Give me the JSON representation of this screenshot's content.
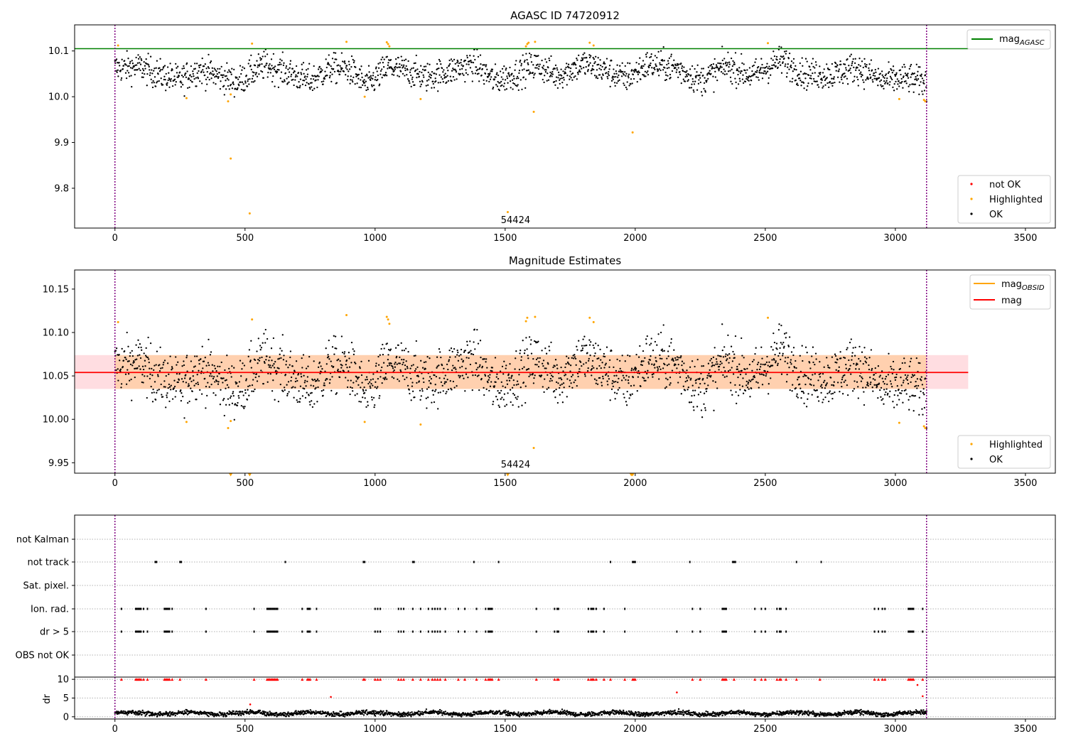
{
  "chart_data": [
    {
      "type": "scatter",
      "title": "AGASC ID 74720912",
      "xlim": [
        -155,
        3615
      ],
      "ylim": [
        9.713,
        10.157
      ],
      "xticks": [
        "0",
        "500",
        "1000",
        "1500",
        "2000",
        "2500",
        "3000",
        "3500"
      ],
      "yticks": [
        "9.8",
        "9.9",
        "10.0",
        "10.1"
      ],
      "reference_line": {
        "label": "mag_AGASC",
        "value": 10.105,
        "color": "#008000"
      },
      "vlines": [
        0,
        3120
      ],
      "annotation": {
        "text": "54424",
        "x": 1540,
        "y": 9.73
      },
      "series": [
        {
          "name": "not OK",
          "color": "#ff0000",
          "points": []
        },
        {
          "name": "Highlighted",
          "color": "#ffa500",
          "points": [
            [
              12,
              10.112
            ],
            [
              275,
              9.997
            ],
            [
              435,
              9.99
            ],
            [
              445,
              9.865
            ],
            [
              445,
              10.005
            ],
            [
              518,
              9.745
            ],
            [
              527,
              10.116
            ],
            [
              890,
              10.12
            ],
            [
              960,
              10.0
            ],
            [
              1045,
              10.119
            ],
            [
              1050,
              10.115
            ],
            [
              1055,
              10.11
            ],
            [
              1175,
              9.995
            ],
            [
              1510,
              9.748
            ],
            [
              1580,
              10.11
            ],
            [
              1585,
              10.115
            ],
            [
              1590,
              10.118
            ],
            [
              1610,
              9.967
            ],
            [
              1615,
              10.12
            ],
            [
              1825,
              10.118
            ],
            [
              1840,
              10.112
            ],
            [
              1990,
              9.922
            ],
            [
              2510,
              10.117
            ],
            [
              3015,
              9.995
            ],
            [
              3110,
              9.993
            ],
            [
              3115,
              9.99
            ]
          ]
        },
        {
          "name": "OK",
          "color": "#000000",
          "band_center": [
            [
              0,
              10.062
            ],
            [
              100,
              10.065
            ],
            [
              150,
              10.052
            ],
            [
              250,
              10.036
            ],
            [
              320,
              10.06
            ],
            [
              400,
              10.045
            ],
            [
              470,
              10.032
            ],
            [
              520,
              10.05
            ],
            [
              580,
              10.07
            ],
            [
              650,
              10.055
            ],
            [
              750,
              10.035
            ],
            [
              830,
              10.062
            ],
            [
              900,
              10.06
            ],
            [
              970,
              10.025
            ],
            [
              1050,
              10.065
            ],
            [
              1130,
              10.055
            ],
            [
              1200,
              10.043
            ],
            [
              1300,
              10.058
            ],
            [
              1380,
              10.072
            ],
            [
              1460,
              10.035
            ],
            [
              1550,
              10.052
            ],
            [
              1620,
              10.07
            ],
            [
              1700,
              10.046
            ],
            [
              1800,
              10.072
            ],
            [
              1900,
              10.055
            ],
            [
              1960,
              10.04
            ],
            [
              2050,
              10.07
            ],
            [
              2150,
              10.065
            ],
            [
              2250,
              10.035
            ],
            [
              2350,
              10.068
            ],
            [
              2450,
              10.045
            ],
            [
              2560,
              10.08
            ],
            [
              2650,
              10.05
            ],
            [
              2750,
              10.048
            ],
            [
              2850,
              10.065
            ],
            [
              2950,
              10.035
            ],
            [
              3050,
              10.04
            ],
            [
              3120,
              10.03
            ]
          ]
        }
      ],
      "legend_lines": {
        "items": [
          {
            "label": "mag",
            "sub": "AGASC",
            "color": "#008000"
          }
        ],
        "placement": "upper right"
      },
      "legend_points": {
        "items": [
          "not OK",
          "Highlighted",
          "OK"
        ],
        "placement": "lower right"
      }
    },
    {
      "type": "scatter",
      "title": "Magnitude Estimates",
      "xlim": [
        -155,
        3615
      ],
      "ylim": [
        9.938,
        10.172
      ],
      "xticks": [
        "0",
        "500",
        "1000",
        "1500",
        "2000",
        "2500",
        "3000",
        "3500"
      ],
      "yticks": [
        "9.95",
        "10.00",
        "10.05",
        "10.10",
        "10.15"
      ],
      "mag": {
        "value": 10.054,
        "color": "#ff0000",
        "band": [
          10.035,
          10.074
        ],
        "band_color": "#ffdde1"
      },
      "mag_obsid": {
        "color": "#ffa500"
      },
      "vlines": [
        0,
        3120
      ],
      "annotation": {
        "text": "54424",
        "x": 1540,
        "y": 9.948
      },
      "series": [
        {
          "name": "Highlighted",
          "color": "#ffa500",
          "points": [
            [
              12,
              10.112
            ],
            [
              275,
              9.997
            ],
            [
              435,
              9.99
            ],
            [
              445,
              9.998
            ],
            [
              527,
              10.115
            ],
            [
              890,
              10.12
            ],
            [
              960,
              9.997
            ],
            [
              1045,
              10.118
            ],
            [
              1050,
              10.115
            ],
            [
              1055,
              10.11
            ],
            [
              1175,
              9.994
            ],
            [
              1580,
              10.113
            ],
            [
              1585,
              10.117
            ],
            [
              1615,
              10.118
            ],
            [
              1610,
              9.967
            ],
            [
              1825,
              10.117
            ],
            [
              1840,
              10.112
            ],
            [
              2510,
              10.117
            ],
            [
              3015,
              9.996
            ],
            [
              3110,
              9.992
            ],
            [
              3115,
              9.99
            ]
          ]
        },
        {
          "name": "OK",
          "color": "#000000"
        }
      ],
      "clipped_markers": {
        "color": "#ffa500",
        "x": [
          445,
          518,
          1510,
          1985,
          1990
        ],
        "y": 9.94
      },
      "legend_lines": {
        "items": [
          {
            "label": "mag",
            "sub": "OBSID",
            "color": "#ffa500"
          },
          {
            "label": "mag",
            "sub": "",
            "color": "#ff0000"
          }
        ],
        "placement": "upper right"
      },
      "legend_points": {
        "items": [
          "Highlighted",
          "OK"
        ],
        "placement": "lower right"
      }
    },
    {
      "type": "scatter",
      "xlim": [
        -155,
        3615
      ],
      "flag_rows": [
        "not Kalman",
        "not track",
        "Sat. pixel.",
        "Ion. rad.",
        "dr > 5",
        "OBS not OK"
      ],
      "flags": {
        "not Kalman": [],
        "not track": [
          155,
          160,
          250,
          255,
          655,
          955,
          960,
          1145,
          1150,
          1380,
          1475,
          1905,
          1990,
          1995,
          2000,
          2210,
          2375,
          2380,
          2385,
          2620,
          2715
        ],
        "Sat. pixel.": [],
        "Ion. rad.": [
          25,
          80,
          85,
          90,
          95,
          100,
          110,
          125,
          190,
          195,
          200,
          205,
          210,
          220,
          350,
          535,
          585,
          590,
          595,
          600,
          605,
          610,
          615,
          620,
          625,
          720,
          740,
          745,
          750,
          775,
          1000,
          1010,
          1020,
          1090,
          1100,
          1110,
          1145,
          1175,
          1205,
          1220,
          1230,
          1240,
          1250,
          1270,
          1320,
          1345,
          1390,
          1425,
          1435,
          1440,
          1445,
          1450,
          1620,
          1690,
          1700,
          1705,
          1820,
          1830,
          1835,
          1840,
          1850,
          1880,
          1960,
          2220,
          2250,
          2335,
          2340,
          2345,
          2350,
          2460,
          2485,
          2500,
          2545,
          2555,
          2560,
          2580,
          2920,
          2935,
          2950,
          2960,
          3050,
          3055,
          3060,
          3065,
          3070,
          3105
        ],
        "dr > 5": [
          25,
          80,
          85,
          90,
          95,
          100,
          110,
          125,
          190,
          195,
          200,
          205,
          210,
          220,
          350,
          535,
          585,
          590,
          595,
          600,
          605,
          610,
          615,
          620,
          625,
          720,
          740,
          745,
          750,
          775,
          1000,
          1010,
          1020,
          1090,
          1100,
          1110,
          1145,
          1175,
          1205,
          1220,
          1230,
          1240,
          1250,
          1270,
          1320,
          1345,
          1390,
          1425,
          1435,
          1440,
          1445,
          1450,
          1620,
          1690,
          1700,
          1705,
          1820,
          1830,
          1835,
          1840,
          1850,
          1880,
          1960,
          2160,
          2220,
          2250,
          2335,
          2340,
          2345,
          2350,
          2460,
          2485,
          2500,
          2545,
          2555,
          2560,
          2580,
          2920,
          2935,
          2950,
          2960,
          3050,
          3055,
          3060,
          3065,
          3070,
          3105
        ],
        "OBS not OK": []
      },
      "dr": {
        "ylabel": "dr",
        "yticks": [
          "0",
          "5",
          "10"
        ],
        "ylim": [
          -0.6,
          10.6
        ],
        "capped_value": 10,
        "capped_x": [
          25,
          80,
          85,
          90,
          95,
          100,
          110,
          125,
          190,
          195,
          200,
          205,
          210,
          220,
          250,
          350,
          535,
          585,
          590,
          595,
          600,
          605,
          610,
          615,
          620,
          625,
          720,
          740,
          745,
          750,
          775,
          955,
          960,
          1000,
          1010,
          1020,
          1090,
          1100,
          1110,
          1145,
          1175,
          1205,
          1220,
          1230,
          1240,
          1250,
          1270,
          1320,
          1345,
          1390,
          1425,
          1435,
          1440,
          1445,
          1450,
          1475,
          1620,
          1690,
          1700,
          1705,
          1820,
          1830,
          1835,
          1840,
          1850,
          1880,
          1905,
          1960,
          1990,
          1995,
          2000,
          2220,
          2250,
          2335,
          2340,
          2345,
          2350,
          2380,
          2460,
          2485,
          2500,
          2545,
          2555,
          2560,
          2580,
          2620,
          2710,
          2920,
          2935,
          2950,
          2960,
          3050,
          3055,
          3060,
          3065,
          3070,
          3105
        ],
        "red_points": [
          [
            520,
            3.3
          ],
          [
            830,
            5.3
          ],
          [
            2160,
            6.5
          ],
          [
            3085,
            8.5
          ],
          [
            3105,
            5.5
          ]
        ]
      },
      "vlines": [
        0,
        3120
      ]
    }
  ]
}
